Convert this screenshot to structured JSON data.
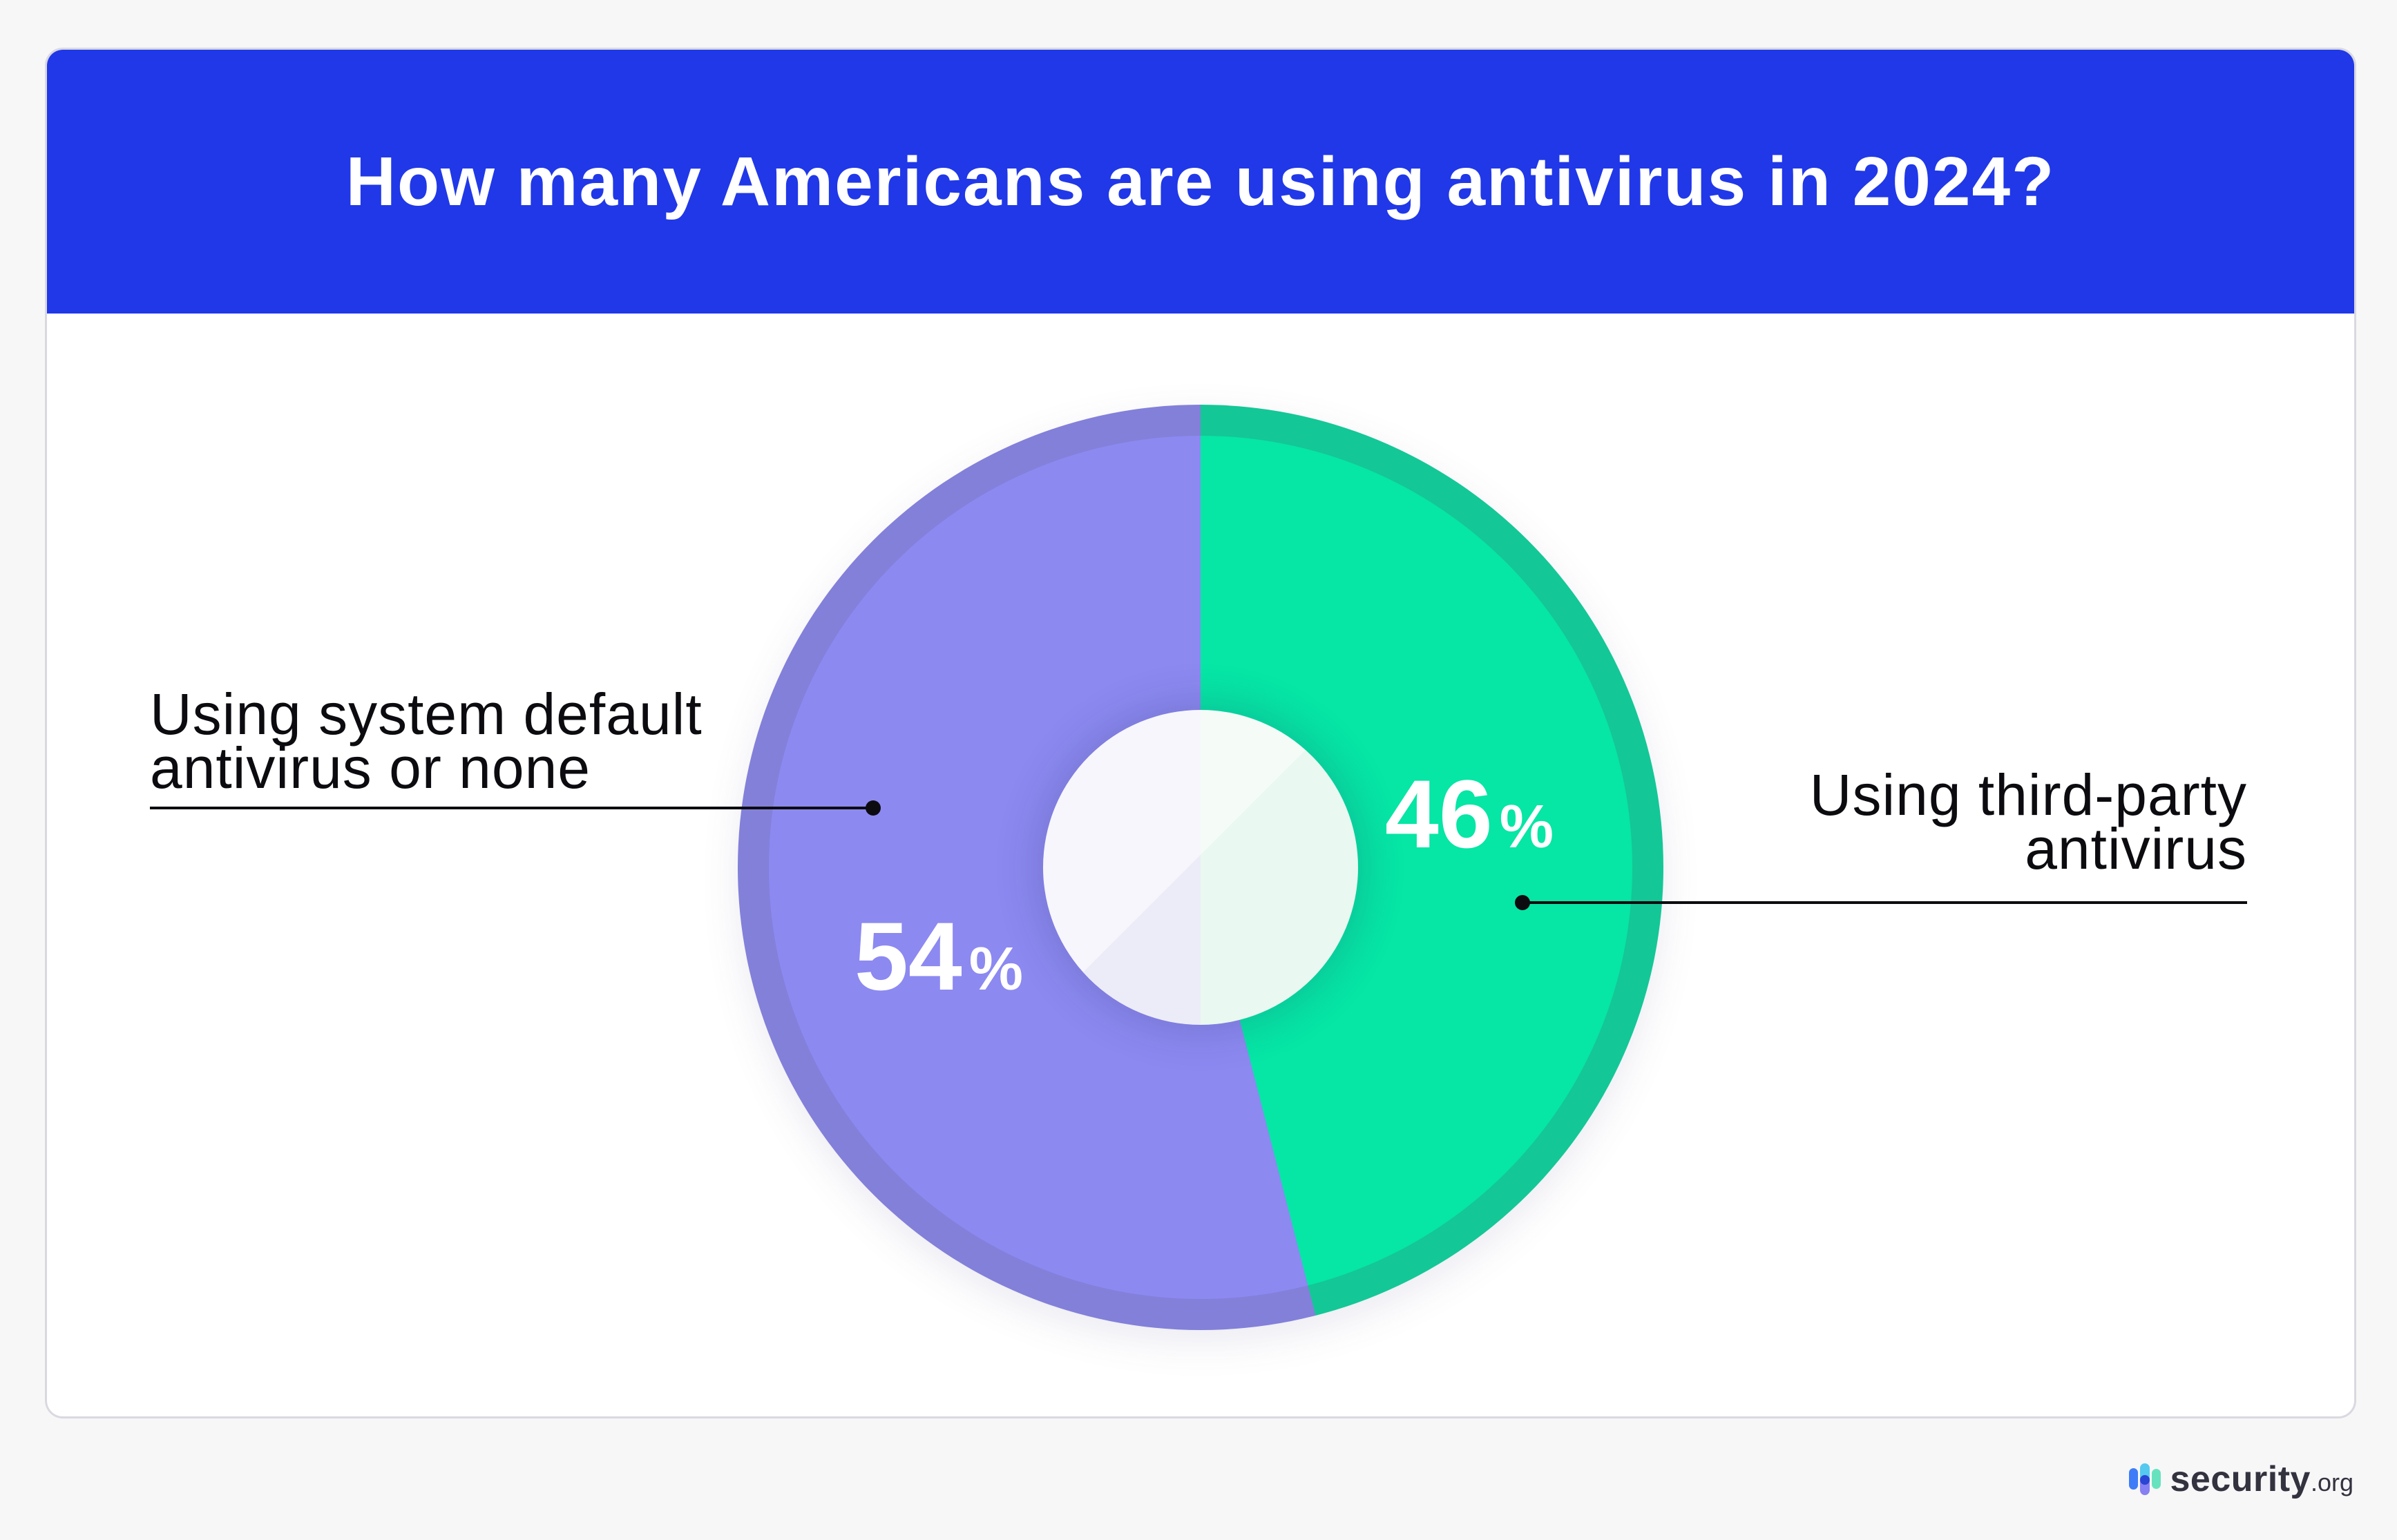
{
  "header": {
    "title": "How many Americans are using antivirus in 2024?"
  },
  "chart_data": {
    "type": "pie",
    "donut": true,
    "title": "How many Americans are using antivirus in 2024?",
    "start_angle_deg": 0,
    "direction": "clockwise",
    "legend_position": "callouts",
    "slices": [
      {
        "label": "Using third-party antivirus",
        "value": 46,
        "unit": "%",
        "color": "#06E6A5",
        "rim_color": "#14C796"
      },
      {
        "label": "Using system default antivirus or none",
        "value": 54,
        "unit": "%",
        "color": "#8C89F1",
        "rim_color": "#8380DA"
      }
    ]
  },
  "callouts": {
    "left": {
      "lines": [
        "Using system default",
        "antivirus or none"
      ]
    },
    "right": {
      "lines": [
        "Using third-party",
        "antivirus"
      ]
    }
  },
  "footer": {
    "brand": "security",
    "suffix": ".org"
  },
  "colors": {
    "page_bg": "#F7F7F8",
    "card_bg": "#FFFFFF",
    "card_border": "#D9D9E0",
    "header_bg": "#2038E8",
    "title_text": "#FFFFFF",
    "value_text": "#FFFFFF",
    "label_text": "#0C0C10",
    "hole_left": "#ECECF8",
    "hole_right": "#E9F8F0",
    "logo_text": "#33323F",
    "logo_blue": "#3E7DF7",
    "logo_cyan": "#55C9F0",
    "logo_purple": "#8680F2",
    "logo_mint": "#66E3BE",
    "logo_dot": "#2A44D4"
  }
}
